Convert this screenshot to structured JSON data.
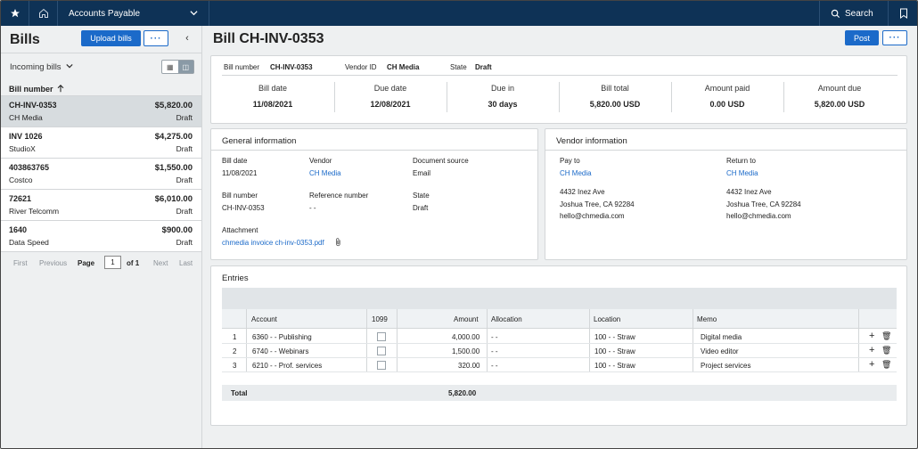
{
  "topbar": {
    "module": "Accounts Payable",
    "search": "Search"
  },
  "left": {
    "title": "Bills",
    "upload_label": "Upload bills",
    "more_label": "···",
    "collapse": "‹",
    "filter_label": "Incoming bills",
    "list_header": "Bill number",
    "bills": [
      {
        "number": "CH-INV-0353",
        "amount": "$5,820.00",
        "vendor": "CH Media",
        "status": "Draft"
      },
      {
        "number": "INV 1026",
        "amount": "$4,275.00",
        "vendor": "StudioX",
        "status": "Draft"
      },
      {
        "number": "403863765",
        "amount": "$1,550.00",
        "vendor": "Costco",
        "status": "Draft"
      },
      {
        "number": "72621",
        "amount": "$6,010.00",
        "vendor": "River Telcomm",
        "status": "Draft"
      },
      {
        "number": "1640",
        "amount": "$900.00",
        "vendor": "Data Speed",
        "status": "Draft"
      }
    ],
    "pager": {
      "first": "First",
      "previous": "Previous",
      "page": "Page",
      "current": "1",
      "of": "of 1",
      "next": "Next",
      "last": "Last"
    }
  },
  "main": {
    "title": "Bill CH-INV-0353",
    "post_label": "Post",
    "more_label": "···",
    "header": {
      "bill_number_label": "Bill number",
      "bill_number": "CH-INV-0353",
      "vendor_id_label": "Vendor ID",
      "vendor_id": "CH Media",
      "state_label": "State",
      "state": "Draft"
    },
    "summary": [
      {
        "label": "Bill date",
        "value": "11/08/2021"
      },
      {
        "label": "Due date",
        "value": "12/08/2021"
      },
      {
        "label": "Due in",
        "value": "30 days"
      },
      {
        "label": "Bill total",
        "value": "5,820.00 USD"
      },
      {
        "label": "Amount paid",
        "value": "0.00 USD"
      },
      {
        "label": "Amount due",
        "value": "5,820.00 USD"
      }
    ],
    "general": {
      "title": "General information",
      "bill_date_label": "Bill date",
      "bill_date": "11/08/2021",
      "vendor_label": "Vendor",
      "vendor": "CH Media",
      "doc_source_label": "Document source",
      "doc_source": "Email",
      "bill_number_label": "Bill number",
      "bill_number": "CH-INV-0353",
      "ref_label": "Reference number",
      "ref": "- -",
      "state_label": "State",
      "state": "Draft",
      "attachment_label": "Attachment",
      "attachment": "chmedia invoice ch-inv-0353.pdf"
    },
    "vendor_info": {
      "title": "Vendor information",
      "pay_to_label": "Pay to",
      "pay_to": "CH Media",
      "pay_addr1": "4432 Inez Ave",
      "pay_addr2": "Joshua Tree, CA 92284",
      "pay_email": "hello@chmedia.com",
      "return_to_label": "Return to",
      "return_to": "CH Media",
      "ret_addr1": "4432 Inez Ave",
      "ret_addr2": "Joshua Tree, CA 92284",
      "ret_email": "hello@chmedia.com"
    },
    "entries": {
      "title": "Entries",
      "columns": {
        "account": "Account",
        "c1099": "1099",
        "amount": "Amount",
        "allocation": "Allocation",
        "location": "Location",
        "memo": "Memo"
      },
      "rows": [
        {
          "n": "1",
          "account": "6360 - - Publishing",
          "amount": "4,000.00",
          "allocation": "- -",
          "location": "100 - - Straw",
          "memo": "Digital media"
        },
        {
          "n": "2",
          "account": "6740 - - Webinars",
          "amount": "1,500.00",
          "allocation": "- -",
          "location": "100 - - Straw",
          "memo": "Video editor"
        },
        {
          "n": "3",
          "account": "6210 - - Prof. services",
          "amount": "320.00",
          "allocation": "- -",
          "location": "100 - - Straw",
          "memo": "Project services"
        }
      ],
      "total_label": "Total",
      "total": "5,820.00"
    }
  }
}
